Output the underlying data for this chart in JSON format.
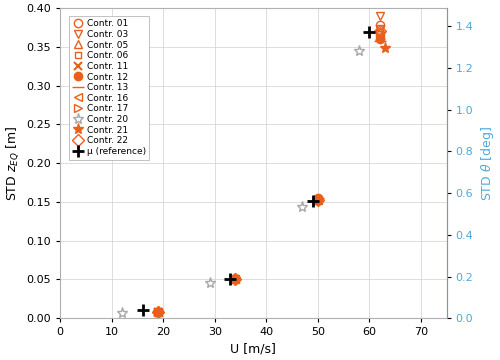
{
  "orange_color": "#E8601C",
  "gray_color": "#A8A8A8",
  "black_color": "#000000",
  "blue_color": "#4DAADC",
  "bg_color": "#ffffff",
  "grid_color": "#d0d0d0",
  "series": [
    {
      "label": "Contr. 01",
      "marker": "o",
      "color": "#E8601C",
      "filled": false,
      "ms": 6,
      "x": [
        19,
        34,
        50,
        62
      ],
      "y": [
        0.008,
        0.05,
        0.152,
        0.378
      ]
    },
    {
      "label": "Contr. 03",
      "marker": "v",
      "color": "#E8601C",
      "filled": false,
      "ms": 6,
      "x": [
        19,
        34,
        50,
        62
      ],
      "y": [
        0.008,
        0.05,
        0.152,
        0.39
      ]
    },
    {
      "label": "Contr. 05",
      "marker": "^",
      "color": "#E8601C",
      "filled": false,
      "ms": 6,
      "x": [
        19,
        34,
        50,
        62
      ],
      "y": [
        0.008,
        0.05,
        0.152,
        0.37
      ]
    },
    {
      "label": "Contr. 06",
      "marker": "s",
      "color": "#E8601C",
      "filled": false,
      "ms": 5,
      "x": [
        19,
        34,
        50,
        62
      ],
      "y": [
        0.008,
        0.05,
        0.152,
        0.375
      ]
    },
    {
      "label": "Contr. 11",
      "marker": "x",
      "color": "#E8601C",
      "filled": true,
      "ms": 6,
      "x": [
        19,
        34,
        50,
        62
      ],
      "y": [
        0.008,
        0.05,
        0.152,
        0.363
      ]
    },
    {
      "label": "Contr. 12",
      "marker": "o",
      "color": "#E8601C",
      "filled": true,
      "ms": 6,
      "x": [
        19,
        34,
        50,
        62
      ],
      "y": [
        0.008,
        0.05,
        0.155,
        0.36
      ]
    },
    {
      "label": "Contr. 13",
      "marker": "_",
      "color": "#E8601C",
      "filled": true,
      "ms": 9,
      "x": [
        19,
        34,
        50,
        62
      ],
      "y": [
        0.008,
        0.05,
        0.155,
        0.358
      ]
    },
    {
      "label": "Contr. 16",
      "marker": "<",
      "color": "#E8601C",
      "filled": false,
      "ms": 6,
      "x": [
        19,
        34,
        50,
        62
      ],
      "y": [
        0.008,
        0.05,
        0.152,
        0.365
      ]
    },
    {
      "label": "Contr. 17",
      "marker": ">",
      "color": "#E8601C",
      "filled": false,
      "ms": 6,
      "x": [
        19,
        34,
        50,
        62
      ],
      "y": [
        0.008,
        0.05,
        0.152,
        0.368
      ]
    },
    {
      "label": "Contr. 20",
      "marker": "*",
      "color": "#A8A8A8",
      "filled": false,
      "ms": 8,
      "x": [
        12,
        29,
        47,
        58
      ],
      "y": [
        0.007,
        0.046,
        0.143,
        0.345
      ]
    },
    {
      "label": "Contr. 21",
      "marker": "*",
      "color": "#E8601C",
      "filled": true,
      "ms": 8,
      "x": [
        19,
        34,
        50,
        63
      ],
      "y": [
        0.008,
        0.05,
        0.152,
        0.348
      ]
    },
    {
      "label": "Contr. 22",
      "marker": "D",
      "color": "#E8601C",
      "filled": false,
      "ms": 6,
      "x": [
        19,
        34,
        50,
        62
      ],
      "y": [
        0.008,
        0.05,
        0.152,
        0.37
      ]
    }
  ],
  "reference": {
    "label": "μ (reference)",
    "color": "#000000",
    "x": [
      16,
      33,
      49,
      60
    ],
    "y": [
      0.01,
      0.051,
      0.151,
      0.369
    ]
  },
  "xlabel": "U [m/s]",
  "ylabel_left": "STD $z_{EQ}$ [m]",
  "ylabel_right": "STD $\\theta$ [deg]",
  "xlim": [
    0,
    75
  ],
  "ylim_left": [
    0,
    0.4
  ],
  "ylim_right": [
    0,
    1.486
  ],
  "xticks": [
    0,
    10,
    20,
    30,
    40,
    50,
    60,
    70
  ],
  "yticks_left": [
    0,
    0.05,
    0.1,
    0.15,
    0.2,
    0.25,
    0.3,
    0.35,
    0.4
  ],
  "yticks_right": [
    0,
    0.2,
    0.4,
    0.6,
    0.8,
    1.0,
    1.2,
    1.4
  ],
  "legend_fontsize": 6.5,
  "axis_fontsize": 9,
  "tick_fontsize": 8
}
